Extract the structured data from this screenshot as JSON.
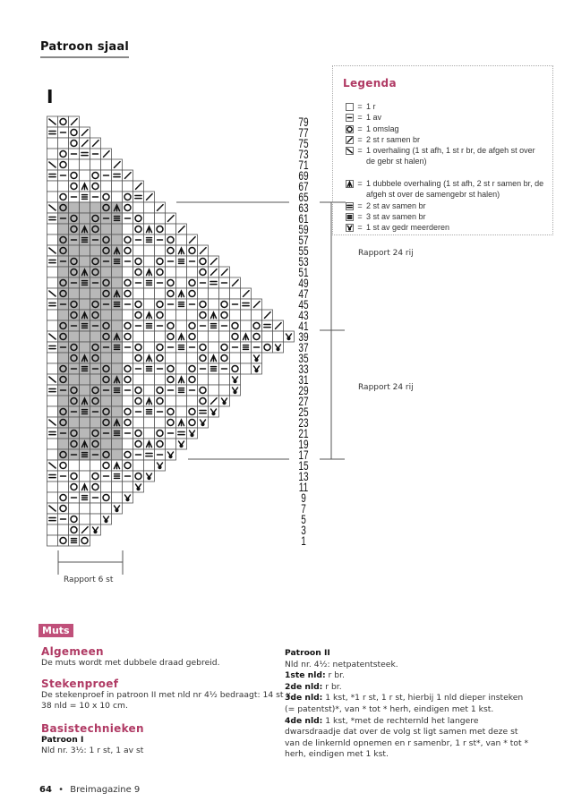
{
  "header": {
    "title": "Patroon sjaal",
    "chart_label": "I"
  },
  "legend": {
    "title": "Legenda",
    "items": [
      {
        "symbol": ".",
        "icon": "empty-square-icon",
        "text": "1 r"
      },
      {
        "symbol": "-",
        "icon": "dash-icon",
        "text": "1 av"
      },
      {
        "symbol": "O",
        "icon": "circle-icon",
        "text": "1 omslag"
      },
      {
        "symbol": "S",
        "icon": "slash-icon",
        "text": "2 st r samen br"
      },
      {
        "symbol": "B",
        "icon": "backslash-icon",
        "text": "1 overhaling (1 st afh, 1 st r br, de afgeh st over de gebr st halen)"
      },
      {
        "symbol": "A",
        "icon": "double-decrease-icon",
        "text": "1 dubbele overhaling (1 st afh, 2 st r samen br, de afgeh st over de samengebr st halen)"
      },
      {
        "symbol": "=",
        "icon": "double-line-icon",
        "text": "2 st av samen br"
      },
      {
        "symbol": "E",
        "icon": "triple-line-icon",
        "text": "3 st av samen br"
      },
      {
        "symbol": "Y",
        "icon": "increase-icon",
        "text": "1 st av gedr meerderen"
      }
    ]
  },
  "chart": {
    "row_labels": [
      "79",
      "77",
      "75",
      "73",
      "71",
      "69",
      "67",
      "65",
      "63",
      "61",
      "59",
      "57",
      "55",
      "53",
      "51",
      "49",
      "47",
      "45",
      "43",
      "41",
      "39",
      "37",
      "35",
      "33",
      "31",
      "29",
      "27",
      "25",
      "23",
      "21",
      "19",
      "17",
      "15",
      "13",
      "11",
      "9",
      "7",
      "5",
      "3",
      "1"
    ],
    "rows": [
      "BOS",
      "=-OS",
      "..OSS",
      ".O-=-S",
      "BO....S",
      "=-O.O-=S",
      "..OAO...S",
      ".O-E-O.O=S",
      "BO...OAO..S",
      "=-O.O-E-O..S",
      "..OAO...OAO.S",
      ".O-E-O.O-E-O.S",
      "BO...OAO...OAOS",
      "=-O.O-E-O.O-E-OS",
      "..OAO...OAO...OSS",
      ".O-E-O.O-E-O.O-=-S",
      "BO...OAO...OAO....S",
      "=-O.O-E-O.O-E-O.O-=S",
      "..OAO...OAO...OAO...S",
      ".O-E-O.O-E-O.O-E-O.O=S",
      "BO...OAO...OAO...OAO..Y",
      "=-O.O-E-O.O-E-O.O-E-OY",
      "..OAO...OAO...OAO..Y",
      ".O-E-O.O-E-O.O-E-O.Y",
      "BO...OAO...OAO...Y",
      "=-O.O-E-O.O-E-O..Y",
      "..OAO...OAO...OSY",
      ".O-E-O.O-E-O.O=Y",
      "BO...OAO...OAOY",
      "=-O.O-E-O.O-=Y",
      "..OAO...OAO.Y",
      ".O-E-O.O-=-Y",
      "BO...OAO..Y",
      "=-O.O-E-OY",
      "..OAO...Y",
      ".O-E-O.Y",
      "BO....Y",
      "=-O..Y",
      "..OSY",
      ".OEO"
    ],
    "shaded_rows": [
      "63",
      "17"
    ],
    "shaded_columns": [
      2,
      7
    ],
    "rapport_rows": [
      "Rapport 24 rij",
      "Rapport 24 rij"
    ],
    "rapport_stitches": "Rapport 6 st"
  },
  "muts": {
    "badge": "Muts",
    "algemeen": {
      "heading": "Algemeen",
      "text": "De muts wordt met dubbele draad gebreid."
    },
    "stekenproef": {
      "heading": "Stekenproef",
      "text": "De stekenproef in patroon II met nld nr 4½ bedraagt: 14 st x 38 nld = 10 x 10 cm."
    },
    "basis": {
      "heading": "Basistechnieken",
      "sub": "Patroon I",
      "text": "Nld nr. 3½: 1 r st, 1 av st"
    },
    "patroon2": {
      "heading": "Patroon II",
      "lines": [
        {
          "bold": "",
          "text": "Nld nr. 4½: netpatentsteek."
        },
        {
          "bold": "1ste nld:",
          "text": " r br."
        },
        {
          "bold": "2de nld:",
          "text": " r br."
        },
        {
          "bold": "3de nld:",
          "text": " 1 kst, *1 r st, 1 r st, hierbij 1 nld dieper insteken (= patentst)*, van * tot * herh, eindigen met 1 kst."
        },
        {
          "bold": "4de nld:",
          "text": " 1 kst, *met de rechternld het langere dwarsdraadje dat over de volg st ligt samen met deze st van de linkernld opnemen en r samenbr, 1 r st*, van * tot * herh, eindigen met 1 kst."
        }
      ]
    }
  },
  "footer": {
    "page": "64",
    "sep": "•",
    "magazine": "Breimagazine 9"
  },
  "colors": {
    "accent": "#b03a64",
    "badge": "#c0507a",
    "shade": "#b8b8b8"
  }
}
